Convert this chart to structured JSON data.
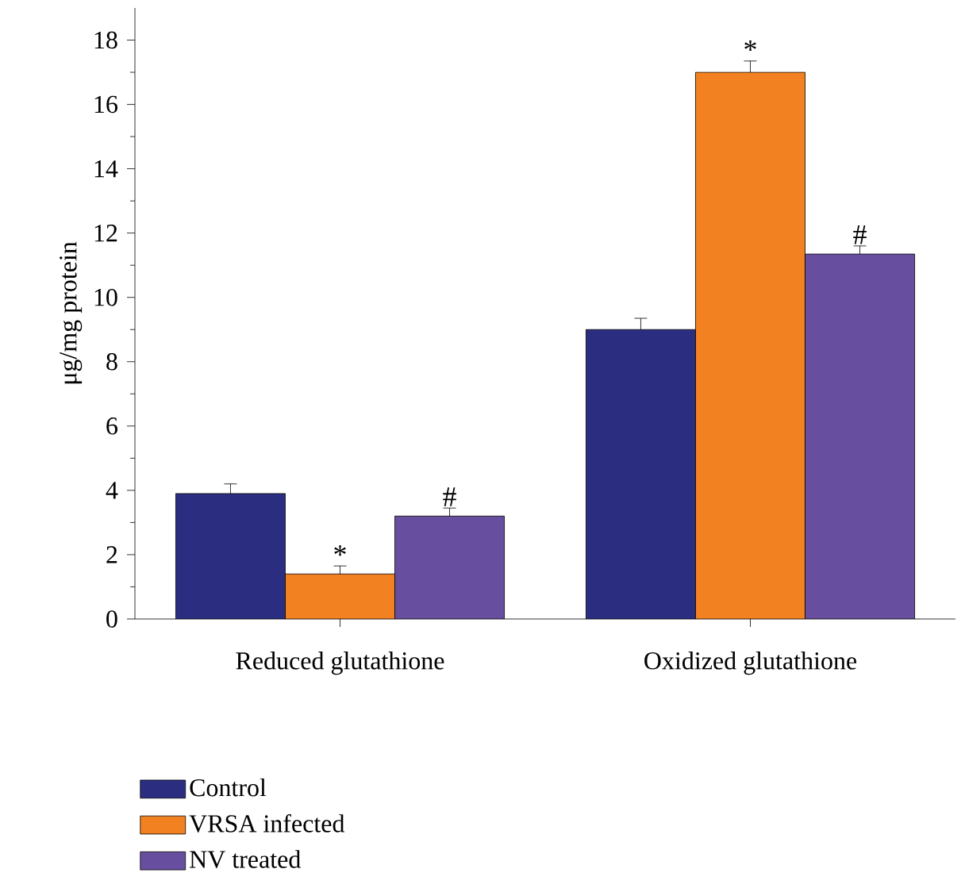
{
  "chart_data": {
    "type": "bar",
    "ylabel": "μg/mg protein",
    "categories": [
      "Reduced glutathione",
      "Oxidized glutathione"
    ],
    "series": [
      {
        "name": "Control",
        "color": "#2b2e80",
        "values": [
          3.9,
          9.0
        ],
        "errors": [
          0.3,
          0.35
        ]
      },
      {
        "name": "VRSA infected",
        "color": "#f28121",
        "values": [
          1.4,
          17.0
        ],
        "errors": [
          0.25,
          0.35
        ],
        "value_labels": [
          "*",
          "*"
        ]
      },
      {
        "name": "NV treated",
        "color": "#684e9f",
        "values": [
          3.2,
          11.35
        ],
        "errors": [
          0.25,
          0.25
        ],
        "value_labels": [
          "#",
          "#"
        ]
      }
    ],
    "ylim": [
      0,
      19
    ],
    "yticks": [
      0,
      2,
      4,
      6,
      8,
      10,
      12,
      14,
      16,
      18
    ],
    "legend": "bottom"
  }
}
